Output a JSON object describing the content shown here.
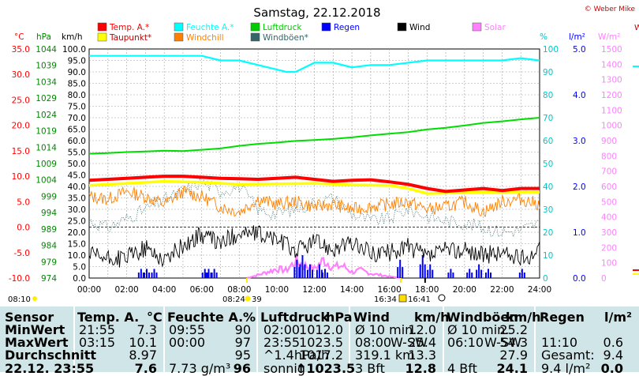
{
  "title": "Samstag, 22.12.2018",
  "copyright": "© Weber Mike",
  "colors": {
    "temp": "#ff0000",
    "dew": "#ffff00",
    "humidity": "#00ffff",
    "windchill": "#ff8000",
    "pressure": "#00dd00",
    "gust": "#336666",
    "rain": "#0000ff",
    "wind": "#000000",
    "solar": "#ff80ff"
  },
  "legend": [
    {
      "label": "Temp. A.*",
      "color": "#ff0000"
    },
    {
      "label": "Feuchte A.*",
      "color": "#00ffff"
    },
    {
      "label": "Luftdruck",
      "color": "#00cc00"
    },
    {
      "label": "Regen",
      "color": "#0000ff"
    },
    {
      "label": "Wind",
      "color": "#000000"
    },
    {
      "label": "Solar",
      "color": "#ff80ff"
    },
    {
      "label": "Taupunkt*",
      "color": "#ffff00"
    },
    {
      "label": "Windchill",
      "color": "#ff8000"
    },
    {
      "label": "Windböen*",
      "color": "#336666"
    }
  ],
  "axes": {
    "celsius": {
      "unit": "°C",
      "ticks": [
        "35.0",
        "30.0",
        "25.0",
        "20.0",
        "15.0",
        "10.0",
        "5.0",
        "0.0",
        "-5.0",
        "-10.0"
      ]
    },
    "hpa": {
      "unit": "hPa",
      "ticks": [
        "1044",
        "1039",
        "1034",
        "1029",
        "1024",
        "1019",
        "1014",
        "1009",
        "1004",
        "999",
        "994",
        "989",
        "984",
        "979",
        "974"
      ]
    },
    "kmh": {
      "unit": "km/h",
      "ticks": [
        "100.0",
        "95.0",
        "90.0",
        "85.0",
        "80.0",
        "75.0",
        "70.0",
        "65.0",
        "60.0",
        "55.0",
        "50.0",
        "45.0",
        "40.0",
        "35.0",
        "30.0",
        "25.0",
        "20.0",
        "15.0",
        "10.0",
        "5.0",
        "0.0"
      ]
    },
    "percent": {
      "unit": "%",
      "ticks": [
        "100",
        "90",
        "80",
        "70",
        "60",
        "50",
        "40",
        "30",
        "20",
        "10",
        "0"
      ]
    },
    "rain": {
      "unit": "l/m²",
      "ticks": [
        "5.0",
        "4.0",
        "3.0",
        "2.0",
        "1.0",
        "0.0"
      ]
    },
    "solar": {
      "unit": "W/m²",
      "ticks": [
        "1500",
        "1400",
        "1300",
        "1200",
        "1100",
        "1000",
        "900",
        "800",
        "700",
        "600",
        "500",
        "400",
        "300",
        "200",
        "100",
        "0"
      ]
    },
    "x_ticks": [
      "00:00",
      "02:00",
      "04:00",
      "06:00",
      "08:00",
      "10:00",
      "12:00",
      "14:00",
      "16:00",
      "18:00",
      "20:00",
      "22:00",
      "24:00"
    ]
  },
  "annotations": {
    "left_time": "08:10",
    "sunrise": "08:24",
    "sunrise_min": "39",
    "sunset": "16:34",
    "sunset2": "16:41",
    "far_right": "W"
  },
  "chart_data": {
    "type": "line",
    "title": "Samstag, 22.12.2018",
    "x_range": [
      "00:00",
      "24:00"
    ],
    "series": [
      {
        "name": "Temp. A.*",
        "unit": "°C",
        "x": [
          0,
          1,
          2,
          3,
          4,
          5,
          6,
          7,
          8,
          9,
          10,
          11,
          12,
          13,
          14,
          15,
          16,
          17,
          18,
          19,
          20,
          21,
          22,
          23,
          24
        ],
        "values": [
          9.2,
          9.4,
          9.6,
          9.8,
          10.0,
          10.0,
          9.8,
          9.6,
          9.5,
          9.4,
          9.6,
          9.8,
          9.4,
          9.0,
          9.2,
          9.3,
          8.9,
          8.4,
          7.6,
          7.0,
          7.3,
          7.6,
          7.2,
          7.6,
          7.6
        ]
      },
      {
        "name": "Taupunkt*",
        "unit": "°C",
        "x": [
          0,
          2,
          4,
          6,
          8,
          10,
          12,
          14,
          16,
          17,
          18,
          20,
          22,
          24
        ],
        "values": [
          8.2,
          8.6,
          9.0,
          8.8,
          8.4,
          8.5,
          8.6,
          8.3,
          8.2,
          7.6,
          6.6,
          6.8,
          6.9,
          6.9
        ]
      },
      {
        "name": "Windchill",
        "unit": "°C",
        "x": [
          0,
          1,
          2,
          3,
          4,
          5,
          6,
          7,
          8,
          9,
          10,
          11,
          12,
          13,
          14,
          15,
          16,
          17,
          18,
          19,
          20,
          21,
          22,
          23,
          24
        ],
        "values": [
          6.0,
          5.5,
          7.0,
          6.0,
          4.5,
          7.0,
          6.0,
          4.0,
          3.0,
          5.5,
          4.5,
          5.0,
          4.0,
          4.5,
          3.5,
          4.0,
          4.5,
          5.0,
          3.5,
          4.0,
          5.0,
          3.0,
          5.0,
          5.5,
          4.5
        ]
      },
      {
        "name": "Feuchte A.*",
        "unit": "%",
        "x": [
          0,
          2,
          4,
          6,
          7,
          8,
          9,
          10,
          10.5,
          11,
          12,
          13,
          14,
          15,
          16,
          18,
          20,
          22,
          23,
          24
        ],
        "values": [
          97,
          97,
          97,
          97,
          95,
          95,
          93,
          91,
          90,
          90,
          94,
          94,
          92,
          93,
          93,
          95,
          95,
          95,
          96,
          95
        ]
      },
      {
        "name": "Luftdruck",
        "unit": "hPa",
        "x": [
          0,
          1,
          2,
          3,
          4,
          5,
          6,
          7,
          8,
          9,
          10,
          11,
          12,
          13,
          14,
          15,
          16,
          17,
          18,
          19,
          20,
          21,
          22,
          23,
          24
        ],
        "values": [
          1012.0,
          1012.2,
          1012.5,
          1012.7,
          1012.9,
          1012.8,
          1013.2,
          1013.6,
          1014.4,
          1015.0,
          1015.4,
          1015.9,
          1016.2,
          1016.5,
          1017.0,
          1017.6,
          1018.1,
          1018.6,
          1019.4,
          1019.9,
          1020.6,
          1021.4,
          1021.9,
          1022.5,
          1023.0
        ]
      },
      {
        "name": "Wind",
        "unit": "km/h",
        "x": [
          0,
          1,
          2,
          3,
          4,
          5,
          6,
          7,
          8,
          9,
          10,
          11,
          12,
          13,
          14,
          15,
          16,
          17,
          18,
          19,
          20,
          21,
          22,
          23,
          24
        ],
        "values": [
          10,
          8,
          9,
          13,
          8,
          14,
          19,
          15,
          20,
          19,
          17,
          12,
          16,
          13,
          15,
          11,
          11,
          14,
          9,
          12,
          12,
          10,
          11,
          8,
          12
        ]
      },
      {
        "name": "Windböen*",
        "unit": "km/h",
        "x": [
          0,
          1,
          2,
          3,
          4,
          5,
          6,
          7,
          8,
          9,
          10,
          11,
          12,
          13,
          14,
          15,
          16,
          17,
          18,
          19,
          20,
          21,
          22,
          23,
          24
        ],
        "values": [
          25,
          22,
          26,
          30,
          34,
          38,
          42,
          38,
          40,
          30,
          28,
          30,
          33,
          35,
          28,
          25,
          26,
          30,
          27,
          25,
          24,
          22,
          20,
          21,
          24
        ]
      },
      {
        "name": "Regen",
        "unit": "l/m²",
        "x": [
          2.6,
          2.9,
          3.3,
          6.0,
          6.2,
          6.5,
          10.9,
          11.2,
          11.6,
          12.1,
          12.4,
          16.4,
          17.6,
          18.0,
          19.1,
          20.1,
          20.6,
          21.1,
          22.9
        ],
        "values": [
          0.2,
          0.2,
          0.2,
          0.2,
          0.2,
          0.2,
          0.4,
          0.5,
          0.3,
          0.3,
          0.2,
          0.4,
          0.5,
          0.3,
          0.2,
          0.2,
          0.3,
          0.2,
          0.2
        ]
      },
      {
        "name": "Solar",
        "unit": "W/m²",
        "x": [
          8.4,
          9,
          9.5,
          10,
          10.5,
          11,
          11.5,
          12,
          12.5,
          13,
          13.5,
          14,
          14.5,
          15,
          15.5,
          16,
          16.6
        ],
        "values": [
          0,
          20,
          40,
          60,
          50,
          110,
          80,
          60,
          120,
          70,
          80,
          40,
          50,
          30,
          20,
          10,
          0
        ]
      }
    ]
  },
  "table": {
    "headers": {
      "sensor": "Sensor",
      "temp": "Temp. A.",
      "temp_unit": "°C",
      "hum": "Feuchte A.",
      "hum_unit": "%",
      "press": "Luftdruck",
      "press_unit": "hPa",
      "wind": "Wind",
      "wind_unit": "km/h",
      "gust": "Windböen",
      "gust_unit": "km/h",
      "rain": "Regen",
      "rain_unit": "l/m²"
    },
    "rows": [
      {
        "label": "MinWert",
        "temp_t": "21:55",
        "temp_v": "7.3",
        "hum_t": "09:55",
        "hum_v": "90",
        "press_t": "02:00",
        "press_v": "1012.0",
        "wind_t": "Ø 10 min.",
        "wind_v": "12.0",
        "gust_t": "Ø 10 min.",
        "gust_d": "",
        "gust_v": "25.2",
        "rain_t": "",
        "rain_v": ""
      },
      {
        "label": "MaxWert",
        "temp_t": "03:15",
        "temp_v": "10.1",
        "hum_t": "00:00",
        "hum_v": "97",
        "press_t": "23:55",
        "press_v": "1023.5",
        "wind_t": "08:00",
        "wind_d": "W-SW",
        "wind_v": "25.4",
        "gust_t": "06:10",
        "gust_d": "W-SW",
        "gust_v": "54.3",
        "rain_t": "11:10",
        "rain_v": "0.6"
      },
      {
        "label": "Durchschnitt",
        "temp_t": "",
        "temp_v": "8.97",
        "hum_t": "",
        "hum_v": "95",
        "press_t": "^1.4hPa/h",
        "press_v": "1017.2",
        "wind_t": "319.1 km",
        "wind_v": "13.3",
        "gust_t": "",
        "gust_v": "27.9",
        "rain_t": "Gesamt:",
        "rain_v": "9.4"
      },
      {
        "label": "22.12. 23:55",
        "temp_t": "",
        "temp_v": "7.6",
        "hum_t": "7.73 g/m³",
        "hum_v": "96",
        "press_t": "sonnig",
        "press_v": "↑1023.5",
        "wind_t": "3 Bft",
        "wind_v": "12.8",
        "gust_t": "4 Bft",
        "gust_v": "24.1",
        "rain_t": "9.4 l/m²",
        "rain_v": "0.0"
      }
    ]
  }
}
